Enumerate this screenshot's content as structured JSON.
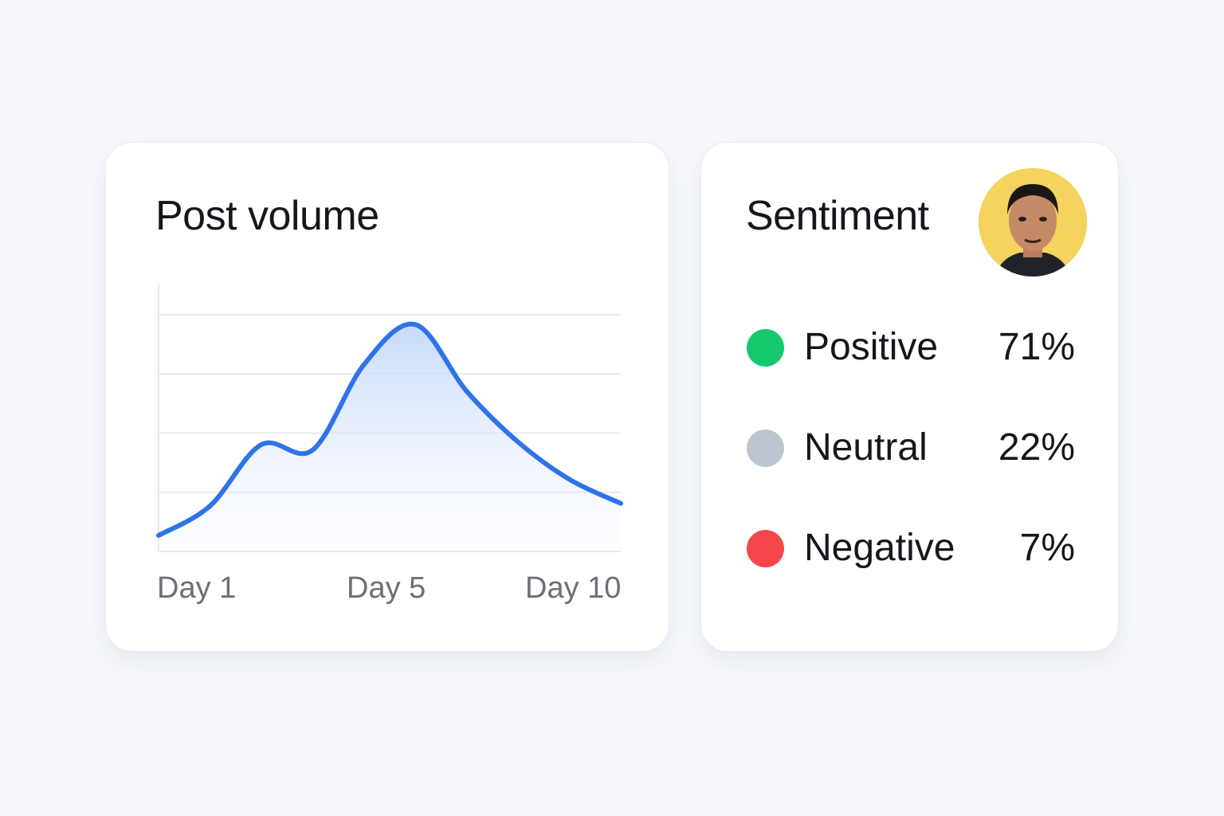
{
  "post_volume": {
    "title": "Post volume"
  },
  "chart_data": {
    "type": "area",
    "title": "Post volume",
    "xlabel": "",
    "ylabel": "",
    "x_tick_labels": [
      "Day 1",
      "Day 5",
      "Day 10"
    ],
    "x": [
      1,
      2,
      3,
      4,
      5,
      6,
      7,
      8,
      9,
      10
    ],
    "series": [
      {
        "values": [
          6,
          17,
          40,
          38,
          70,
          85,
          60,
          41,
          27,
          18
        ]
      }
    ],
    "ylim": [
      0,
      100
    ],
    "grid": true,
    "line_color": "#2f73ea",
    "fill_color": "#cfe0fb"
  },
  "sentiment": {
    "title": "Sentiment",
    "avatar_icon": "user-avatar",
    "items": [
      {
        "label": "Positive",
        "value": "71%",
        "color": "#14c86e"
      },
      {
        "label": "Neutral",
        "value": "22%",
        "color": "#bcc5d1"
      },
      {
        "label": "Negative",
        "value": "7%",
        "color": "#f5474a"
      }
    ]
  }
}
